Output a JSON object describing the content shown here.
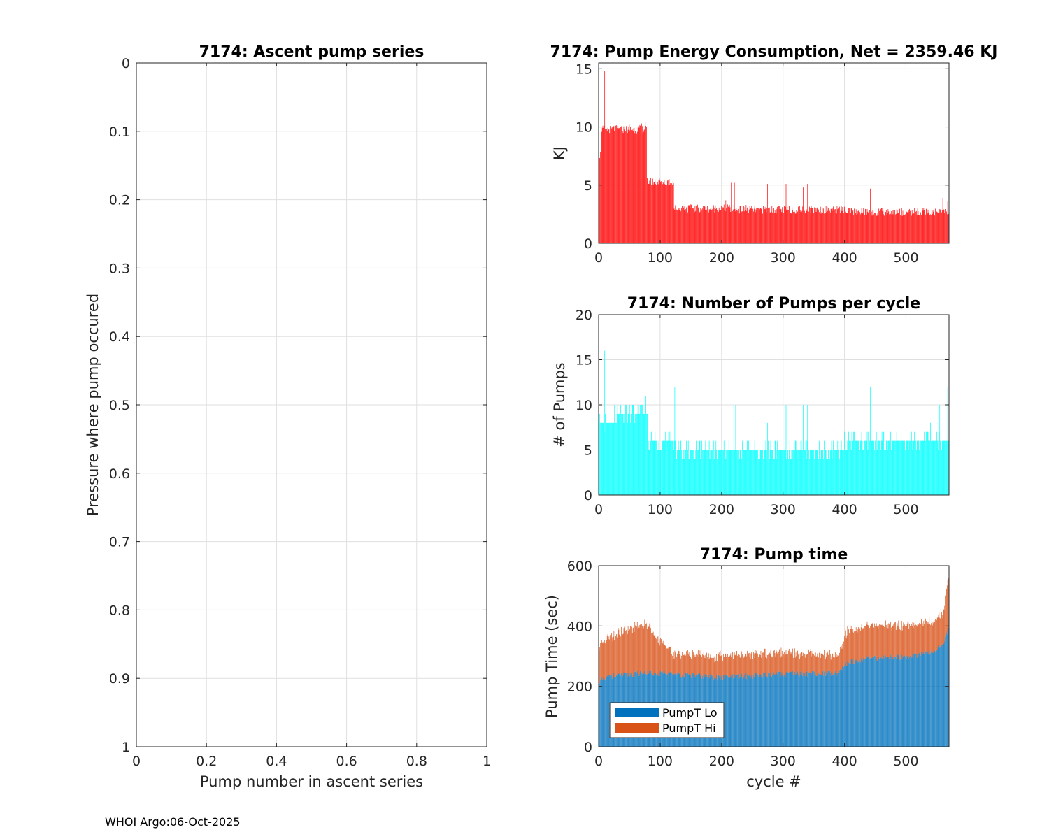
{
  "footer": "WHOI Argo:06-Oct-2025",
  "chart_data": [
    {
      "id": "ascent",
      "type": "scatter",
      "title": "7174: Ascent pump series",
      "xlabel": "Pump number in ascent series",
      "ylabel": "Pressure where pump occured",
      "xlim": [
        0,
        1
      ],
      "ylim": [
        0,
        1
      ],
      "y_reversed": true,
      "grid": true,
      "xticks": [
        0,
        0.2,
        0.4,
        0.6,
        0.8,
        1
      ],
      "xtick_labels": [
        "0",
        "0.2",
        "0.4",
        "0.6",
        "0.8",
        "1"
      ],
      "yticks": [
        0,
        0.1,
        0.2,
        0.3,
        0.4,
        0.5,
        0.6,
        0.7,
        0.8,
        0.9,
        1
      ],
      "ytick_labels": [
        "0",
        "0.1",
        "0.2",
        "0.3",
        "0.4",
        "0.5",
        "0.6",
        "0.7",
        "0.8",
        "0.9",
        "1"
      ],
      "series": []
    },
    {
      "id": "energy",
      "type": "bar",
      "title": "7174: Pump Energy Consumption,  Net = 2359.46 KJ",
      "xlabel": "",
      "ylabel": "KJ",
      "xlim": [
        0,
        570
      ],
      "ylim": [
        0,
        15.5
      ],
      "grid": true,
      "color": "#ff0000",
      "xticks": [
        0,
        100,
        200,
        300,
        400,
        500
      ],
      "xtick_labels": [
        "0",
        "100",
        "200",
        "300",
        "400",
        "500"
      ],
      "yticks": [
        0,
        5,
        10,
        15
      ],
      "ytick_labels": [
        "0",
        "5",
        "10",
        "15"
      ],
      "segments": [
        {
          "from": 1,
          "to": 4,
          "level": 7.6
        },
        {
          "from": 5,
          "to": 78,
          "level": 9.8
        },
        {
          "from": 79,
          "to": 122,
          "level": 5.3
        },
        {
          "from": 123,
          "to": 220,
          "level": 3.0
        },
        {
          "from": 221,
          "to": 400,
          "level": 2.9
        },
        {
          "from": 401,
          "to": 570,
          "level": 2.7
        }
      ],
      "spikes": [
        [
          10,
          14.8
        ],
        [
          25,
          10.1
        ],
        [
          50,
          10.2
        ],
        [
          70,
          10.3
        ],
        [
          76,
          10.4
        ],
        [
          207,
          3.7
        ],
        [
          216,
          5.2
        ],
        [
          221,
          5.2
        ],
        [
          240,
          3.3
        ],
        [
          275,
          5.1
        ],
        [
          305,
          5.1
        ],
        [
          333,
          4.8
        ],
        [
          340,
          5.1
        ],
        [
          424,
          4.8
        ],
        [
          442,
          4.7
        ],
        [
          560,
          3.9
        ],
        [
          568,
          3.6
        ]
      ]
    },
    {
      "id": "pumps",
      "type": "bar",
      "title": "7174: Number of Pumps per cycle",
      "xlabel": "",
      "ylabel": "# of Pumps",
      "xlim": [
        0,
        570
      ],
      "ylim": [
        0,
        20
      ],
      "grid": true,
      "color": "#00ffff",
      "xticks": [
        0,
        100,
        200,
        300,
        400,
        500
      ],
      "xtick_labels": [
        "0",
        "100",
        "200",
        "300",
        "400",
        "500"
      ],
      "yticks": [
        0,
        5,
        10,
        15,
        20
      ],
      "ytick_labels": [
        "0",
        "5",
        "10",
        "15",
        "20"
      ],
      "segments": [
        {
          "from": 1,
          "to": 25,
          "level": 8
        },
        {
          "from": 26,
          "to": 80,
          "level": 9
        },
        {
          "from": 81,
          "to": 125,
          "level": 6
        },
        {
          "from": 126,
          "to": 400,
          "level": 5
        },
        {
          "from": 401,
          "to": 570,
          "level": 6
        }
      ],
      "spikes": [
        [
          10,
          16
        ],
        [
          35,
          10
        ],
        [
          45,
          10
        ],
        [
          55,
          10
        ],
        [
          65,
          10
        ],
        [
          77,
          11
        ],
        [
          124,
          12
        ],
        [
          180,
          6
        ],
        [
          220,
          10
        ],
        [
          223,
          10
        ],
        [
          275,
          8
        ],
        [
          305,
          10
        ],
        [
          333,
          10
        ],
        [
          340,
          10
        ],
        [
          400,
          7
        ],
        [
          424,
          12
        ],
        [
          442,
          12
        ],
        [
          500,
          7
        ],
        [
          540,
          8
        ],
        [
          555,
          10
        ],
        [
          568,
          12
        ]
      ]
    },
    {
      "id": "pumptime",
      "type": "bar",
      "title": "7174: Pump time",
      "xlabel": "cycle #",
      "ylabel": "Pump Time (sec)",
      "xlim": [
        0,
        570
      ],
      "ylim": [
        0,
        600
      ],
      "grid": true,
      "stacked": true,
      "legend_position": "bottom-left",
      "xticks": [
        0,
        100,
        200,
        300,
        400,
        500
      ],
      "xtick_labels": [
        "0",
        "100",
        "200",
        "300",
        "400",
        "500"
      ],
      "yticks": [
        0,
        200,
        400,
        600
      ],
      "ytick_labels": [
        "0",
        "200",
        "400",
        "600"
      ],
      "series": [
        {
          "name": "PumpT Lo",
          "color": "#0072bd",
          "anchors": [
            [
              1,
              215
            ],
            [
              20,
              235
            ],
            [
              60,
              240
            ],
            [
              80,
              245
            ],
            [
              120,
              240
            ],
            [
              200,
              230
            ],
            [
              300,
              240
            ],
            [
              390,
              245
            ],
            [
              405,
              280
            ],
            [
              430,
              290
            ],
            [
              500,
              300
            ],
            [
              540,
              310
            ],
            [
              560,
              340
            ],
            [
              570,
              395
            ]
          ]
        },
        {
          "name": "PumpT Hi",
          "color": "#d95319",
          "anchors": [
            [
              1,
              110
            ],
            [
              20,
              130
            ],
            [
              60,
              155
            ],
            [
              80,
              160
            ],
            [
              100,
              110
            ],
            [
              122,
              65
            ],
            [
              200,
              70
            ],
            [
              300,
              70
            ],
            [
              390,
              60
            ],
            [
              405,
              105
            ],
            [
              430,
              105
            ],
            [
              500,
              105
            ],
            [
              540,
              100
            ],
            [
              560,
              100
            ],
            [
              570,
              180
            ]
          ]
        }
      ]
    }
  ]
}
